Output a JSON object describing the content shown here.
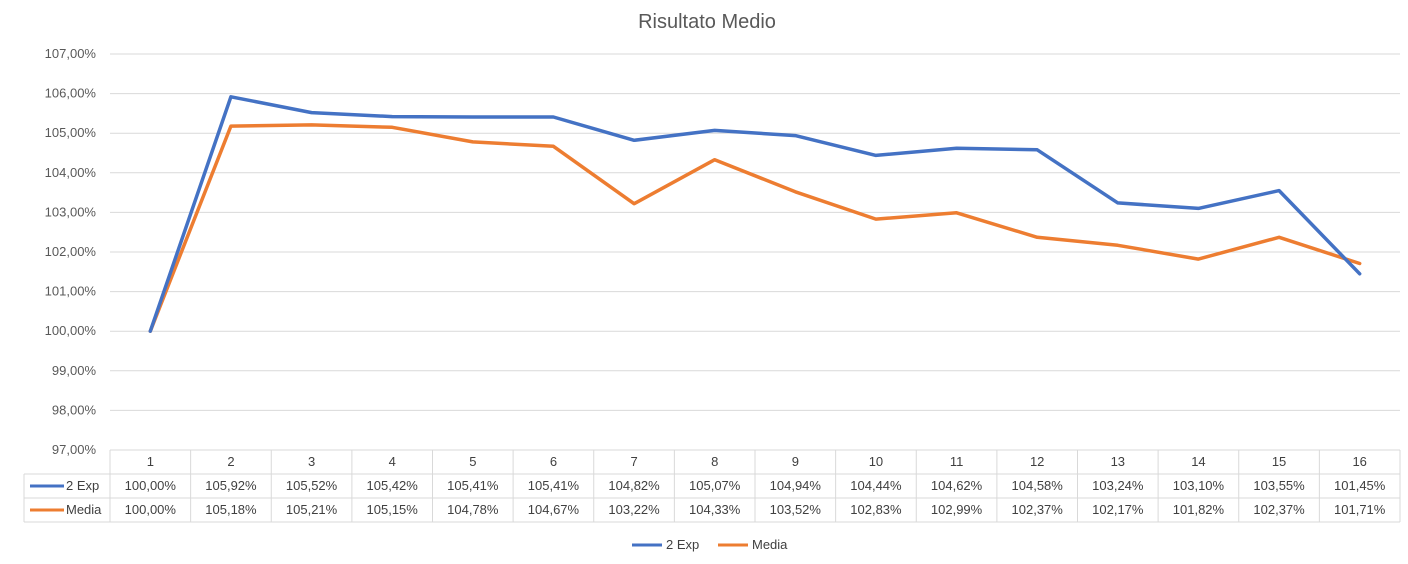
{
  "chart_data": {
    "type": "line",
    "title": "Risultato Medio",
    "categories": [
      "1",
      "2",
      "3",
      "4",
      "5",
      "6",
      "7",
      "8",
      "9",
      "10",
      "11",
      "12",
      "13",
      "14",
      "15",
      "16"
    ],
    "ylim": [
      97,
      107
    ],
    "yticks": [
      "97,00%",
      "98,00%",
      "99,00%",
      "100,00%",
      "101,00%",
      "102,00%",
      "103,00%",
      "104,00%",
      "105,00%",
      "106,00%",
      "107,00%"
    ],
    "grid": true,
    "legend": "bottom",
    "data_table": true,
    "series": [
      {
        "name": "2 Exp",
        "color": "#4472c4",
        "values": [
          100.0,
          105.92,
          105.52,
          105.42,
          105.41,
          105.41,
          104.82,
          105.07,
          104.94,
          104.44,
          104.62,
          104.58,
          103.24,
          103.1,
          103.55,
          101.45
        ],
        "labels": [
          "100,00%",
          "105,92%",
          "105,52%",
          "105,42%",
          "105,41%",
          "105,41%",
          "104,82%",
          "105,07%",
          "104,94%",
          "104,44%",
          "104,62%",
          "104,58%",
          "103,24%",
          "103,10%",
          "103,55%",
          "101,45%"
        ]
      },
      {
        "name": "Media",
        "color": "#ed7d31",
        "values": [
          100.0,
          105.18,
          105.21,
          105.15,
          104.78,
          104.67,
          103.22,
          104.33,
          103.52,
          102.83,
          102.99,
          102.37,
          102.17,
          101.82,
          102.37,
          101.71
        ],
        "labels": [
          "100,00%",
          "105,18%",
          "105,21%",
          "105,15%",
          "104,78%",
          "104,67%",
          "103,22%",
          "104,33%",
          "103,52%",
          "102,83%",
          "102,99%",
          "102,37%",
          "102,17%",
          "101,82%",
          "102,37%",
          "101,71%"
        ]
      }
    ]
  }
}
